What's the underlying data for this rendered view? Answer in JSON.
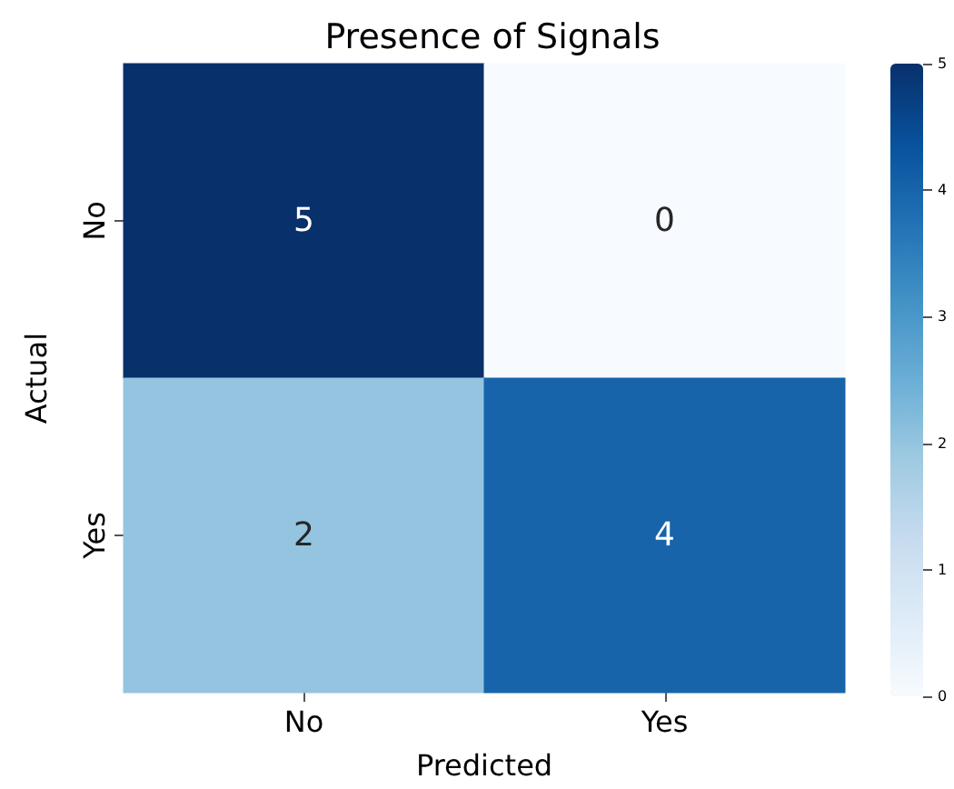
{
  "chart_data": {
    "type": "heatmap",
    "title": "Presence of Signals",
    "xlabel": "Predicted",
    "ylabel": "Actual",
    "categories": [
      "No",
      "Yes"
    ],
    "y_categories": [
      "No",
      "Yes"
    ],
    "cells": [
      [
        5,
        0
      ],
      [
        2,
        4
      ]
    ],
    "clim": [
      0,
      5
    ],
    "cticks": [
      0,
      1,
      2,
      3,
      4,
      5
    ],
    "data_labels": true
  }
}
